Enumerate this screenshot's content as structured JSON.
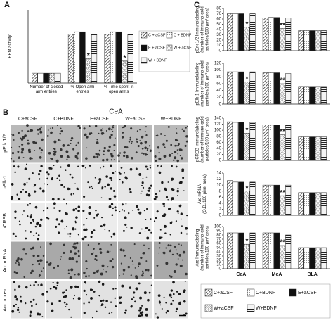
{
  "panel_labels": [
    "A",
    "B",
    "C"
  ],
  "micrographs": {
    "title": "CeA",
    "columns": [
      "C+aCSF",
      "C+BDNF",
      "E+aCSF",
      "W+aCSF",
      "W+BDNF"
    ],
    "rows": [
      "pErk 1/2",
      "pElk-1",
      "pCREB",
      "Arc mRNA",
      "Arc protein"
    ]
  },
  "chart_data": [
    {
      "type": "bar",
      "ylabel": [
        "EPM activity"
      ],
      "ylim": [
        0,
        60
      ],
      "legend": "right",
      "categories": [
        "Number of closed arm entries",
        "% Open arm entries",
        "% Time spent in open arms"
      ],
      "series": [
        {
          "name": "C + aCSF",
          "color": "#333",
          "pattern": "hatch",
          "values": [
            8,
            40,
            40
          ]
        },
        {
          "name": "C + BDNF",
          "color": "#333",
          "pattern": "dots",
          "values": [
            8,
            42,
            42
          ]
        },
        {
          "name": "E + aCSF",
          "color": "#111",
          "pattern": "solid",
          "values": [
            8,
            42,
            42
          ]
        },
        {
          "name": "W + aCSF",
          "color": "#333",
          "pattern": "cross",
          "values": [
            8,
            20,
            18
          ],
          "annotations": [
            null,
            "*",
            "*"
          ]
        },
        {
          "name": "W + BDNF",
          "color": "#333",
          "pattern": "hstripe",
          "values": [
            8,
            40,
            40
          ]
        }
      ]
    },
    {
      "type": "bar",
      "ylabel": [
        "pErk 1/2 Immunolabeling",
        "(number of immuno-gold",
        "particles/100 µm² area)"
      ],
      "ylim": [
        0,
        80
      ],
      "yticks": [
        0,
        10,
        20,
        30,
        40,
        50,
        60,
        70,
        80
      ],
      "series": [
        {
          "name": "C+aCSF",
          "color": "#333",
          "pattern": "hatch",
          "values": [
            70,
            62,
            38
          ]
        },
        {
          "name": "C+BDNF",
          "color": "#333",
          "pattern": "dots",
          "values": [
            70,
            63,
            38
          ]
        },
        {
          "name": "E+aCSF",
          "color": "#111",
          "pattern": "solid",
          "values": [
            70,
            63,
            38
          ]
        },
        {
          "name": "W+aCSF",
          "color": "#333",
          "pattern": "cross",
          "values": [
            45,
            42,
            38
          ],
          "annotations": [
            "*",
            "**",
            null
          ]
        },
        {
          "name": "W+BDNF",
          "color": "#333",
          "pattern": "hstripe",
          "values": [
            70,
            62,
            38
          ]
        }
      ]
    },
    {
      "type": "bar",
      "ylabel": [
        "pElk-1 Immunolabeling",
        "(number of immuno-gold",
        "particles/100 µm² area)"
      ],
      "ylim": [
        0,
        120
      ],
      "yticks": [
        0,
        20,
        40,
        60,
        80,
        100,
        120
      ],
      "series": [
        {
          "name": "C+aCSF",
          "color": "#333",
          "pattern": "hatch",
          "values": [
            95,
            92,
            52
          ]
        },
        {
          "name": "C+BDNF",
          "color": "#333",
          "pattern": "dots",
          "values": [
            95,
            92,
            52
          ]
        },
        {
          "name": "E+aCSF",
          "color": "#111",
          "pattern": "solid",
          "values": [
            95,
            92,
            52
          ]
        },
        {
          "name": "W+aCSF",
          "color": "#333",
          "pattern": "cross",
          "values": [
            65,
            60,
            52
          ],
          "annotations": [
            "*",
            "**",
            null
          ]
        },
        {
          "name": "W+BDNF",
          "color": "#333",
          "pattern": "hstripe",
          "values": [
            95,
            90,
            52
          ]
        }
      ]
    },
    {
      "type": "bar",
      "ylabel": [
        "pCREB Immunolabeling",
        "(number of immuno-gold",
        "particles/100 µm² area)"
      ],
      "ylim": [
        0,
        140
      ],
      "yticks": [
        0,
        20,
        40,
        60,
        80,
        100,
        120,
        140
      ],
      "series": [
        {
          "name": "C+aCSF",
          "color": "#333",
          "pattern": "hatch",
          "values": [
            128,
            118,
            78
          ]
        },
        {
          "name": "C+BDNF",
          "color": "#333",
          "pattern": "dots",
          "values": [
            126,
            117,
            78
          ]
        },
        {
          "name": "E+aCSF",
          "color": "#111",
          "pattern": "solid",
          "values": [
            126,
            117,
            78
          ]
        },
        {
          "name": "W+aCSF",
          "color": "#333",
          "pattern": "cross",
          "values": [
            90,
            85,
            78
          ],
          "annotations": [
            "*",
            "**",
            null
          ]
        },
        {
          "name": "W+BDNF",
          "color": "#333",
          "pattern": "hstripe",
          "values": [
            126,
            117,
            78
          ]
        }
      ]
    },
    {
      "type": "bar",
      "ylabel": [
        "Arc mRNA",
        "(O.D./100 pixel area)"
      ],
      "ylim": [
        0,
        14
      ],
      "yticks": [
        0,
        2,
        4,
        6,
        8,
        10,
        12,
        14
      ],
      "series": [
        {
          "name": "C+aCSF",
          "color": "#333",
          "pattern": "hatch",
          "values": [
            11.5,
            10,
            7.5
          ]
        },
        {
          "name": "C+BDNF",
          "color": "#333",
          "pattern": "dots",
          "values": [
            11,
            10,
            7.5
          ]
        },
        {
          "name": "E+aCSF",
          "color": "#111",
          "pattern": "solid",
          "values": [
            11,
            10,
            7.5
          ]
        },
        {
          "name": "W+aCSF",
          "color": "#333",
          "pattern": "cross",
          "values": [
            8,
            6.5,
            7.5
          ],
          "annotations": [
            "*",
            "**",
            null
          ]
        },
        {
          "name": "W+BDNF",
          "color": "#333",
          "pattern": "hstripe",
          "values": [
            11,
            10,
            7.5
          ]
        }
      ]
    },
    {
      "type": "bar",
      "ylabel": [
        "Arc Immunolabeling",
        "(number of immuno-gold",
        "particles/100 µm² area)"
      ],
      "ylim": [
        0,
        100
      ],
      "yticks": [
        0,
        10,
        20,
        30,
        40,
        50,
        60,
        70,
        80,
        90,
        100
      ],
      "legend": "bottom",
      "categories": [
        "CeA",
        "MeA",
        "BLA"
      ],
      "series": [
        {
          "name": "C+aCSF",
          "color": "#333",
          "pattern": "hatch",
          "values": [
            85,
            85,
            50
          ]
        },
        {
          "name": "C+BDNF",
          "color": "#333",
          "pattern": "dots",
          "values": [
            85,
            85,
            50
          ]
        },
        {
          "name": "E+aCSF",
          "color": "#111",
          "pattern": "solid",
          "values": [
            85,
            85,
            50
          ]
        },
        {
          "name": "W+aCSF",
          "color": "#333",
          "pattern": "cross",
          "values": [
            58,
            55,
            50
          ],
          "annotations": [
            "*",
            "**",
            null
          ]
        },
        {
          "name": "W+BDNF",
          "color": "#333",
          "pattern": "hstripe",
          "values": [
            85,
            80,
            50
          ]
        }
      ]
    }
  ]
}
